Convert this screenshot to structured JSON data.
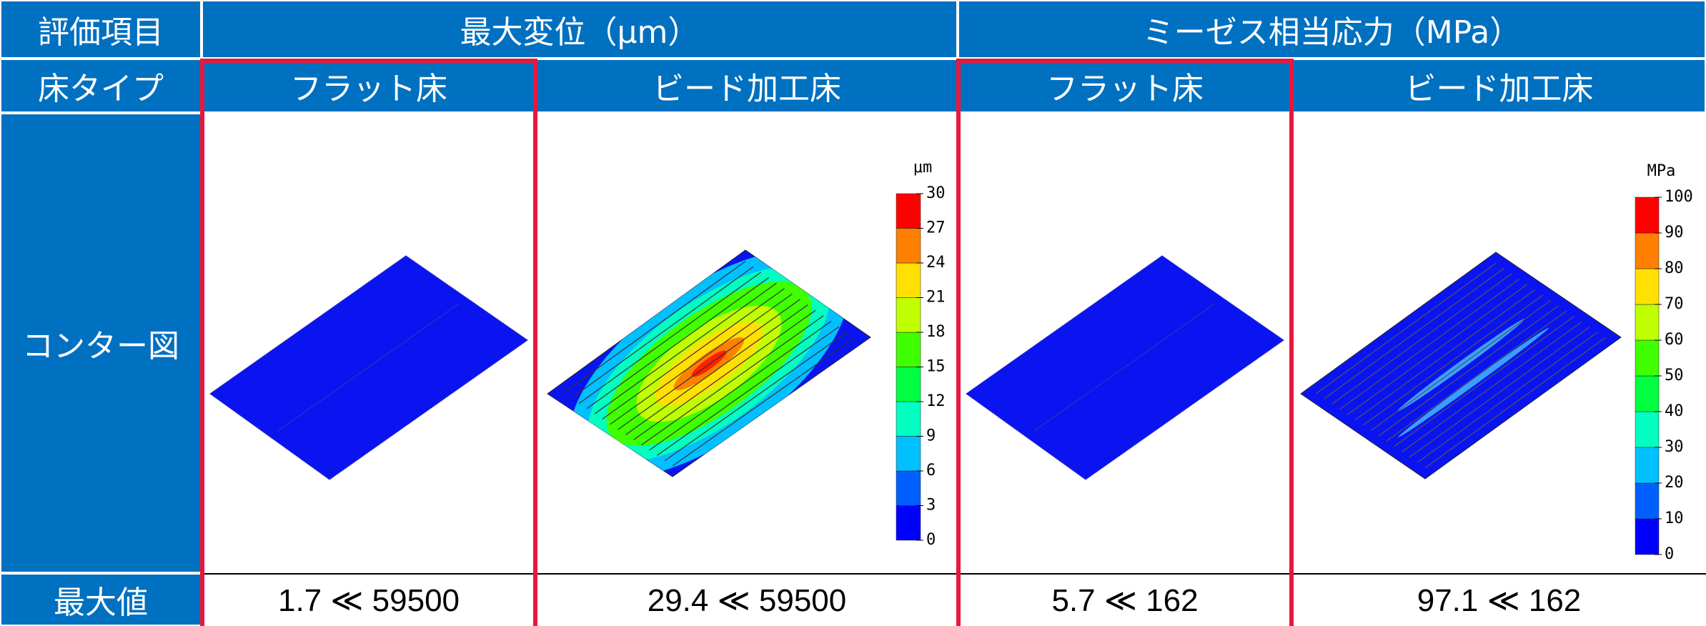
{
  "table": {
    "header": [
      "評価項目",
      "最大変位（μm）",
      "ミーゼス相当応力（MPa）"
    ],
    "rows": [
      [
        "床タイプ",
        "フラット床",
        "ビード加工床",
        "フラット床",
        "ビード加工床"
      ],
      [
        "コンター図"
      ],
      [
        "最大値",
        "1.7 ≪ 59500",
        "29.4 ≪ 59500",
        "5.7 ≪ 162",
        "97.1 ≪ 162"
      ]
    ]
  },
  "colorbars": [
    {
      "unit": "μm",
      "ticks": [
        0,
        3,
        6,
        9,
        12,
        15,
        18,
        21,
        24,
        27,
        30
      ]
    },
    {
      "unit": "MPa",
      "ticks": [
        0,
        10,
        20,
        30,
        40,
        50,
        60,
        70,
        80,
        90,
        100
      ]
    }
  ]
}
